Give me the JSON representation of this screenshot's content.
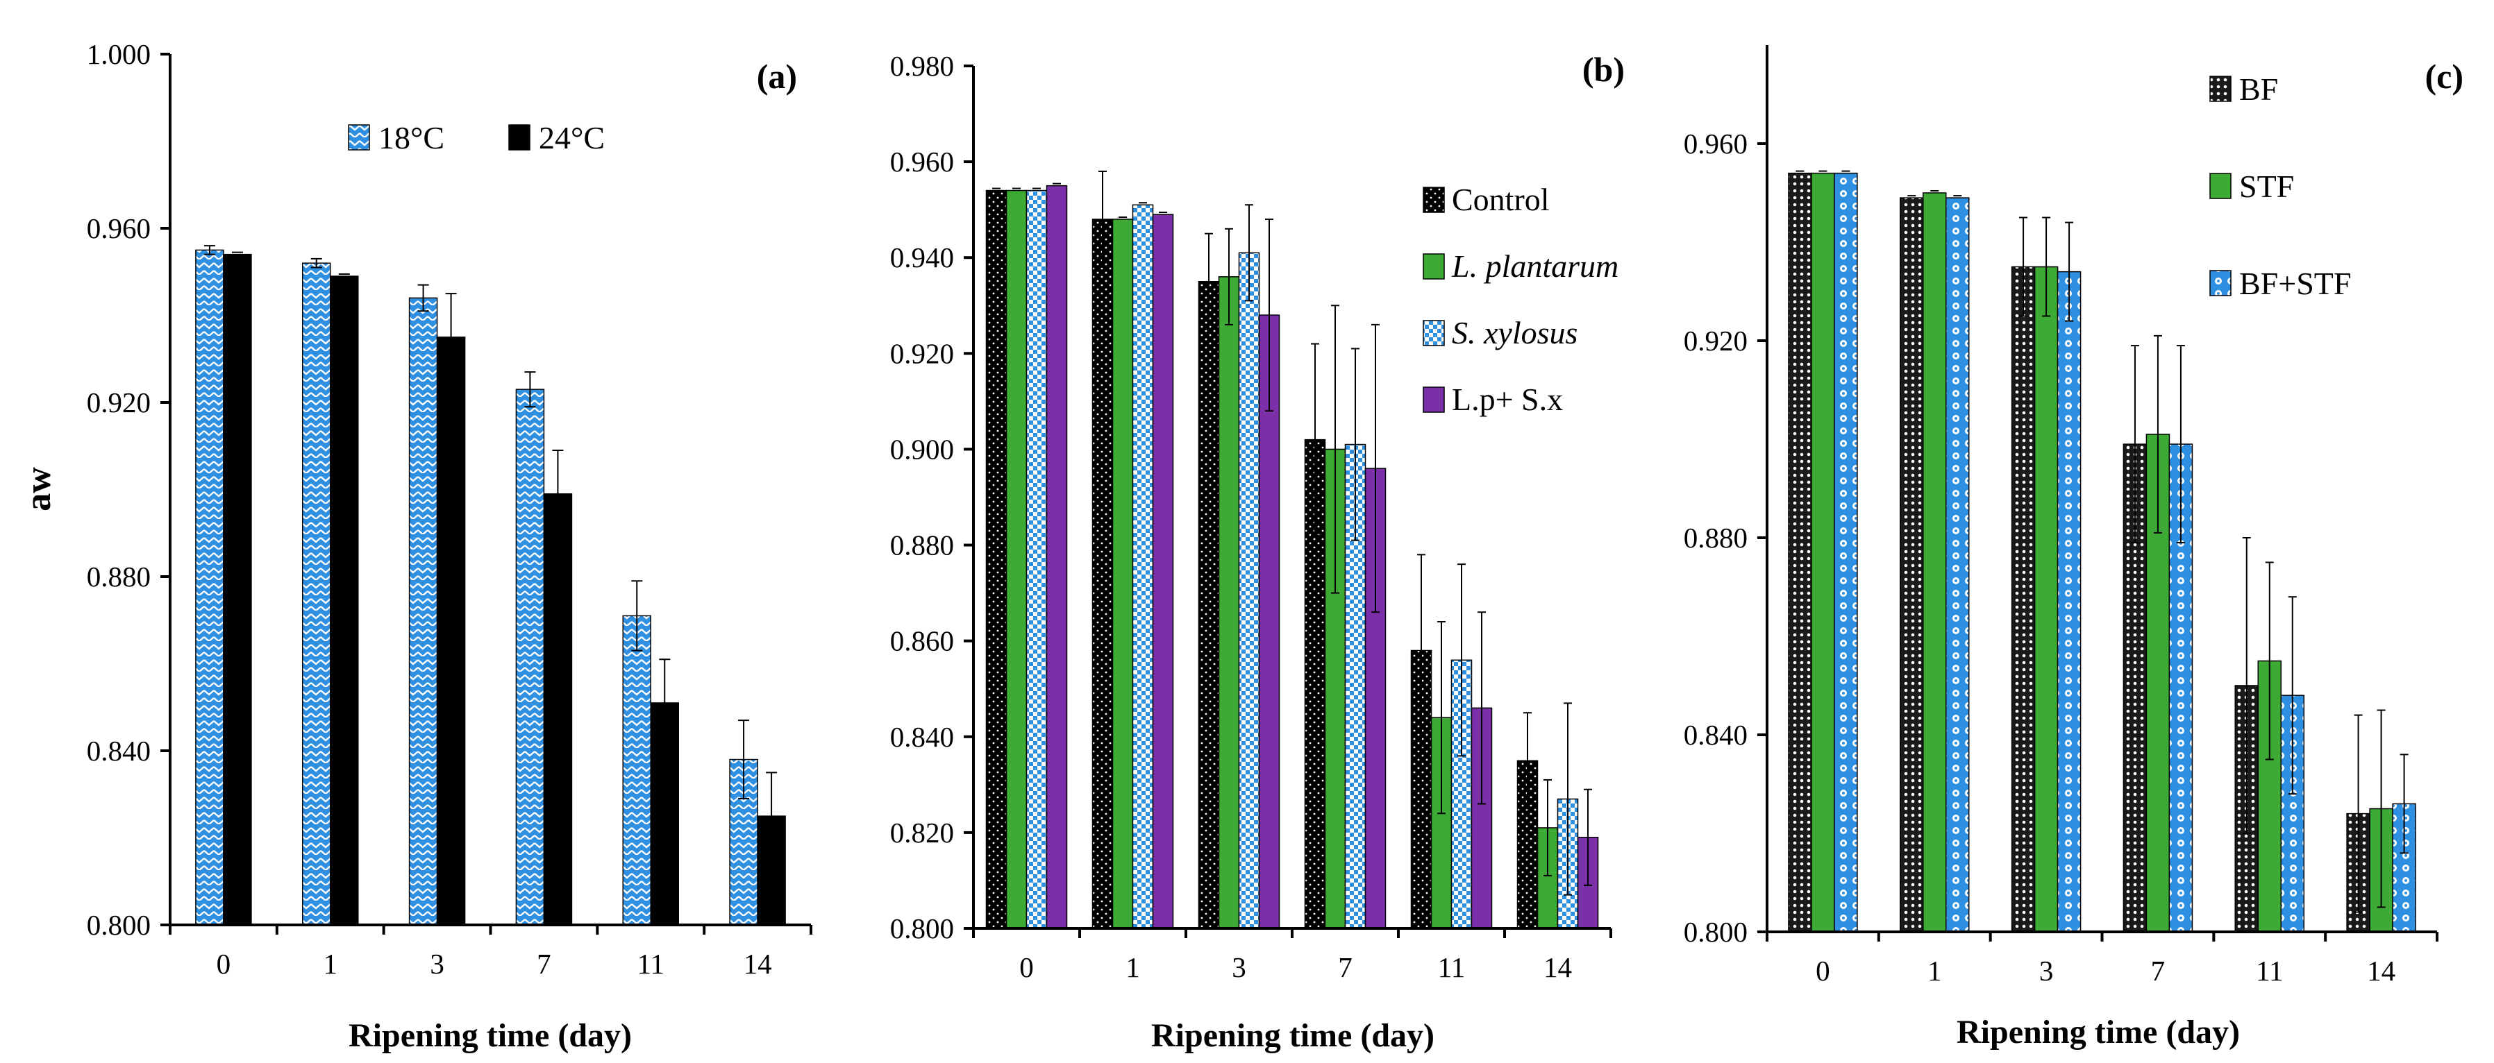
{
  "chart_data": [
    {
      "panel": "(a)",
      "type": "bar",
      "categories": [
        "0",
        "1",
        "3",
        "7",
        "11",
        "14"
      ],
      "xlabel": "Ripening time (day)",
      "ylabel": "aw",
      "ylim": [
        0.8,
        1.0
      ],
      "yticks": [
        "0.800",
        "0.840",
        "0.880",
        "0.920",
        "0.960",
        "1.000"
      ],
      "legend_position": "top",
      "series": [
        {
          "name": "18°C",
          "pattern": "zigzag",
          "color": "#2F8FE0",
          "italic": false,
          "values": [
            0.955,
            0.952,
            0.944,
            0.923,
            0.871,
            0.838
          ],
          "errors": [
            0.001,
            0.001,
            0.003,
            0.004,
            0.008,
            0.009
          ]
        },
        {
          "name": "24°C",
          "pattern": "solid",
          "color": "#000000",
          "italic": false,
          "values": [
            0.954,
            0.949,
            0.935,
            0.899,
            0.851,
            0.825
          ],
          "errors": [
            0.0,
            0.0,
            0.01,
            0.01,
            0.01,
            0.01
          ]
        }
      ]
    },
    {
      "panel": "(b)",
      "type": "bar",
      "categories": [
        "0",
        "1",
        "3",
        "7",
        "11",
        "14"
      ],
      "xlabel": "Ripening time (day)",
      "ylabel": "",
      "ylim": [
        0.8,
        0.98
      ],
      "yticks": [
        "0.800",
        "0.820",
        "0.840",
        "0.860",
        "0.880",
        "0.900",
        "0.920",
        "0.940",
        "0.960",
        "0.980"
      ],
      "legend_position": "right",
      "series": [
        {
          "name": "Control",
          "pattern": "dots",
          "color": "#000000",
          "italic": false,
          "values": [
            0.954,
            0.948,
            0.935,
            0.902,
            0.858,
            0.835
          ],
          "errors": [
            0.0,
            0.01,
            0.01,
            0.02,
            0.02,
            0.01
          ]
        },
        {
          "name": "L. plantarum",
          "pattern": "solid",
          "color": "#3DAA35",
          "italic": true,
          "values": [
            0.954,
            0.948,
            0.936,
            0.9,
            0.844,
            0.821
          ],
          "errors": [
            0.0,
            0.0,
            0.01,
            0.03,
            0.02,
            0.01
          ]
        },
        {
          "name": "S. xylosus",
          "pattern": "checker",
          "color": "#2F8FE0",
          "italic": true,
          "values": [
            0.954,
            0.951,
            0.941,
            0.901,
            0.856,
            0.827
          ],
          "errors": [
            0.0,
            0.0,
            0.01,
            0.02,
            0.02,
            0.02
          ]
        },
        {
          "name": "L.p+ S.x",
          "pattern": "solid",
          "color": "#7B2FA8",
          "italic": false,
          "values": [
            0.955,
            0.949,
            0.928,
            0.896,
            0.846,
            0.819
          ],
          "errors": [
            0.0,
            0.0,
            0.02,
            0.03,
            0.02,
            0.01
          ]
        }
      ]
    },
    {
      "panel": "(c)",
      "type": "bar",
      "categories": [
        "0",
        "1",
        "3",
        "7",
        "11",
        "14"
      ],
      "xlabel": "Ripening time (day)",
      "ylabel": "",
      "ylim": [
        0.8,
        0.98
      ],
      "yticks": [
        "0.800",
        "0.840",
        "0.880",
        "0.920",
        "0.960"
      ],
      "legend_position": "top-left",
      "series": [
        {
          "name": "BF",
          "pattern": "crosshatch",
          "color": "#000000",
          "italic": false,
          "values": [
            0.954,
            0.949,
            0.935,
            0.899,
            0.85,
            0.824
          ],
          "errors": [
            0.0,
            0.0,
            0.01,
            0.02,
            0.03,
            0.02
          ]
        },
        {
          "name": "STF",
          "pattern": "solid",
          "color": "#3DAA35",
          "italic": false,
          "values": [
            0.954,
            0.95,
            0.935,
            0.901,
            0.855,
            0.825
          ],
          "errors": [
            0.0,
            0.0,
            0.01,
            0.02,
            0.02,
            0.02
          ]
        },
        {
          "name": "BF+STF",
          "pattern": "ring",
          "color": "#2F8FE0",
          "italic": false,
          "values": [
            0.954,
            0.949,
            0.934,
            0.899,
            0.848,
            0.826
          ],
          "errors": [
            0.0,
            0.0,
            0.01,
            0.02,
            0.02,
            0.01
          ]
        }
      ]
    }
  ]
}
